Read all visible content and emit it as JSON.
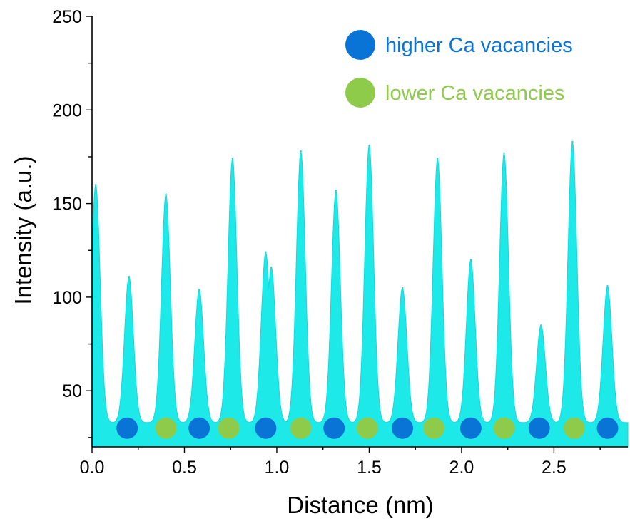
{
  "chart_data": {
    "type": "area",
    "title": "",
    "xlabel": "Distance (nm)",
    "ylabel": "Intensity (a.u.)",
    "xlim": [
      0,
      2.9
    ],
    "ylim": [
      20,
      250
    ],
    "xticks": [
      0.0,
      0.5,
      1.0,
      1.5,
      2.0,
      2.5
    ],
    "xtick_labels": [
      "0.0",
      "0.5",
      "1.0",
      "1.5",
      "2.0",
      "2.5"
    ],
    "yticks": [
      50,
      100,
      150,
      200,
      250
    ],
    "ytick_labels": [
      "50",
      "100",
      "150",
      "200",
      "250"
    ],
    "grid": false,
    "legend_position": "top-right",
    "baseline": 33,
    "series": [
      {
        "color": "#1de9e9",
        "peaks": [
          {
            "x": 0.02,
            "y": 160
          },
          {
            "x": 0.2,
            "y": 111
          },
          {
            "x": 0.4,
            "y": 155
          },
          {
            "x": 0.58,
            "y": 104
          },
          {
            "x": 0.76,
            "y": 174
          },
          {
            "x": 0.94,
            "y": 124
          },
          {
            "x": 0.97,
            "y": 116
          },
          {
            "x": 1.13,
            "y": 178
          },
          {
            "x": 1.32,
            "y": 157
          },
          {
            "x": 1.5,
            "y": 181
          },
          {
            "x": 1.68,
            "y": 105
          },
          {
            "x": 1.87,
            "y": 174
          },
          {
            "x": 2.05,
            "y": 120
          },
          {
            "x": 2.23,
            "y": 177
          },
          {
            "x": 2.43,
            "y": 85
          },
          {
            "x": 2.6,
            "y": 183
          },
          {
            "x": 2.79,
            "y": 106
          }
        ]
      }
    ],
    "markers": [
      {
        "x": 0.19,
        "y": 30,
        "type": "higher"
      },
      {
        "x": 0.4,
        "y": 30,
        "type": "lower"
      },
      {
        "x": 0.58,
        "y": 30,
        "type": "higher"
      },
      {
        "x": 0.74,
        "y": 30,
        "type": "lower"
      },
      {
        "x": 0.94,
        "y": 30,
        "type": "higher"
      },
      {
        "x": 1.13,
        "y": 30,
        "type": "lower"
      },
      {
        "x": 1.31,
        "y": 30,
        "type": "higher"
      },
      {
        "x": 1.49,
        "y": 30,
        "type": "lower"
      },
      {
        "x": 1.68,
        "y": 30,
        "type": "higher"
      },
      {
        "x": 1.85,
        "y": 30,
        "type": "lower"
      },
      {
        "x": 2.05,
        "y": 30,
        "type": "higher"
      },
      {
        "x": 2.23,
        "y": 30,
        "type": "lower"
      },
      {
        "x": 2.42,
        "y": 30,
        "type": "higher"
      },
      {
        "x": 2.61,
        "y": 30,
        "type": "lower"
      },
      {
        "x": 2.79,
        "y": 30,
        "type": "higher"
      }
    ],
    "legend": [
      {
        "label": "higher Ca vacancies",
        "color": "#0a74d6",
        "type": "higher"
      },
      {
        "label": "lower Ca vacancies",
        "color": "#8fcb4a",
        "type": "lower"
      }
    ],
    "colors": {
      "higher": "#0a74d6",
      "lower": "#8fcb4a",
      "fill": "#1de9e9"
    }
  }
}
